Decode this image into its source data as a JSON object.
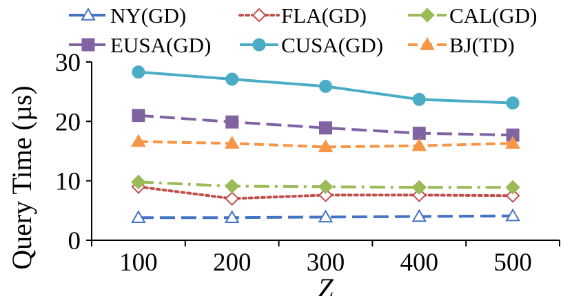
{
  "chart_data": {
    "type": "line",
    "title": "",
    "xlabel": "Z",
    "ylabel": "Query Time (µs)",
    "x": [
      "100",
      "200",
      "300",
      "400",
      "500"
    ],
    "ylim": [
      0,
      30
    ],
    "yticks": [
      "0",
      "10",
      "20",
      "30"
    ],
    "grid": false,
    "legend_position": "top",
    "series": [
      {
        "name": "NY(GD)",
        "values": [
          3.8,
          3.8,
          3.9,
          4.0,
          4.1
        ],
        "color": "#4472C4",
        "dash": "long-dash",
        "marker": "open-triangle"
      },
      {
        "name": "FLA(GD)",
        "values": [
          9.0,
          7.0,
          7.6,
          7.6,
          7.5
        ],
        "color": "#C0504D",
        "dash": "dotted",
        "marker": "open-diamond"
      },
      {
        "name": "CAL(GD)",
        "values": [
          9.8,
          9.1,
          9.0,
          8.9,
          8.9
        ],
        "color": "#9BBB59",
        "dash": "dash-dot",
        "marker": "filled-diamond"
      },
      {
        "name": "EUSA(GD)",
        "values": [
          21.0,
          19.9,
          18.9,
          18.0,
          17.7
        ],
        "color": "#8064A2",
        "dash": "long-dash",
        "marker": "filled-square"
      },
      {
        "name": "CUSA(GD)",
        "values": [
          28.3,
          27.1,
          25.9,
          23.7,
          23.1
        ],
        "color": "#4BACC6",
        "dash": "solid",
        "marker": "filled-circle"
      },
      {
        "name": "BJ(TD)",
        "values": [
          16.6,
          16.3,
          15.7,
          15.9,
          16.3
        ],
        "color": "#F79646",
        "dash": "dashed",
        "marker": "filled-triangle"
      }
    ]
  }
}
